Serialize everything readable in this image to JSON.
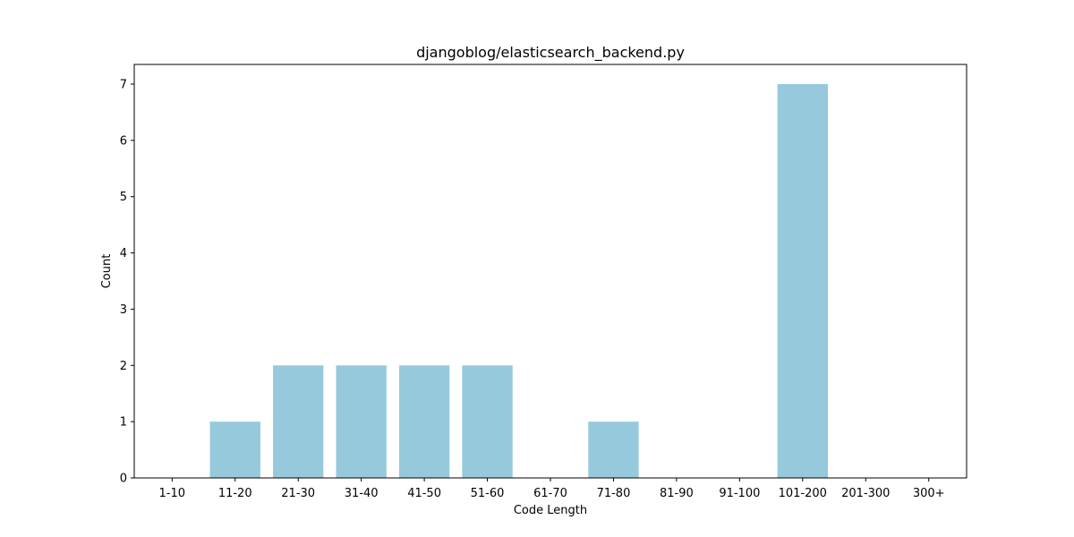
{
  "chart_data": {
    "type": "bar",
    "title": "djangoblog/elasticsearch_backend.py",
    "xlabel": "Code Length",
    "ylabel": "Count",
    "categories": [
      "1-10",
      "11-20",
      "21-30",
      "31-40",
      "41-50",
      "51-60",
      "61-70",
      "71-80",
      "81-90",
      "91-100",
      "101-200",
      "201-300",
      "300+"
    ],
    "values": [
      0,
      1,
      2,
      2,
      2,
      2,
      0,
      1,
      0,
      0,
      7,
      0,
      0
    ],
    "ylim": [
      0,
      7.35
    ],
    "yticks": [
      0,
      1,
      2,
      3,
      4,
      5,
      6,
      7
    ],
    "grid": false,
    "legend": "none",
    "bar_color": "#96c9dc",
    "axis_color": "#000000"
  }
}
